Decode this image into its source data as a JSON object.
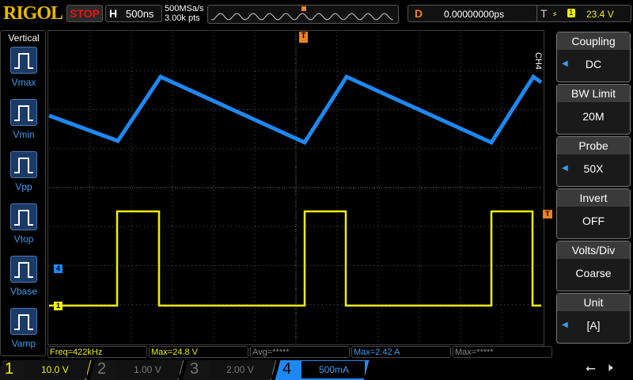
{
  "header": {
    "brand": "RIGOL",
    "run_state": "STOP",
    "horizontal_key": "H",
    "timebase": "500ns",
    "sample_rate": "500MSa/s",
    "memory_depth": "3.00k pts",
    "delay_key": "D",
    "delay": "0.00000000ps",
    "trigger_key": "T",
    "trigger_source": "1",
    "trigger_level": "23.4 V"
  },
  "left_panel": {
    "title": "Vertical",
    "items": [
      {
        "label": "Vmax"
      },
      {
        "label": "Vmin"
      },
      {
        "label": "Vpp"
      },
      {
        "label": "Vtop"
      },
      {
        "label": "Vbase"
      },
      {
        "label": "Vamp"
      }
    ]
  },
  "right_panel": {
    "channel": "CH4",
    "items": [
      {
        "title": "Coupling",
        "value": "DC"
      },
      {
        "title": "BW Limit",
        "value": "20M"
      },
      {
        "title": "Probe",
        "value": "50X"
      },
      {
        "title": "Invert",
        "value": "OFF"
      },
      {
        "title": "Volts/Div",
        "value": "Coarse"
      },
      {
        "title": "Unit",
        "value": "[A]"
      }
    ]
  },
  "markers": {
    "ch1": "1",
    "ch4": "4",
    "trigger": "T"
  },
  "measurements": [
    {
      "text": "Freq=422kHz",
      "color": "#f0f000"
    },
    {
      "text": "Max=24.8 V",
      "color": "#f0f000"
    },
    {
      "text": "Avg=*****",
      "color": "#888888"
    },
    {
      "text": "Max=2.42 A",
      "color": "#3b9cf0"
    },
    {
      "text": "Max=*****",
      "color": "#888888"
    }
  ],
  "channels": [
    {
      "num": "1",
      "scale": "10.0 V",
      "color": "#f0f000",
      "active": true
    },
    {
      "num": "2",
      "scale": "1.00 V",
      "color": "#777777",
      "active": false
    },
    {
      "num": "3",
      "scale": "2.00 V",
      "color": "#777777",
      "active": false
    },
    {
      "num": "4",
      "scale": "500mA",
      "color": "#3b9cf0",
      "active": true
    }
  ],
  "colors": {
    "ch1": "#f0f000",
    "ch4": "#1e88f0",
    "trigger": "#f08020"
  }
}
